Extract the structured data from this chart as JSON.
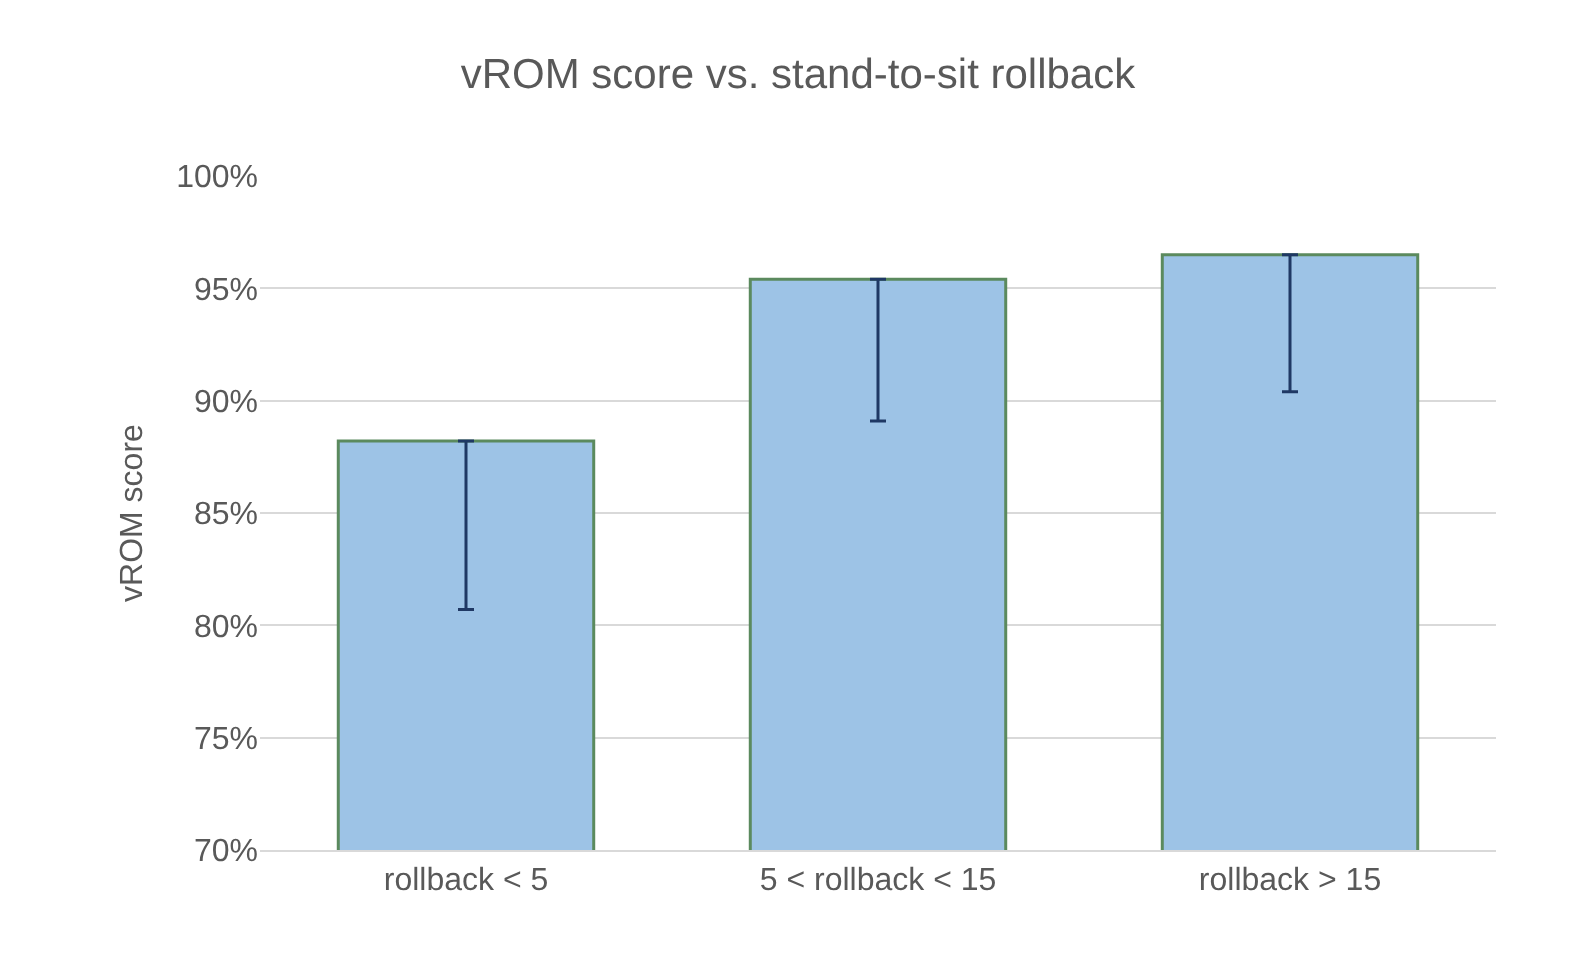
{
  "chart_data": {
    "type": "bar",
    "title": "vROM score vs. stand-to-sit rollback",
    "ylabel": "vROM score",
    "categories": [
      "rollback < 5",
      "5 < rollback < 15",
      "rollback > 15"
    ],
    "values": [
      88.2,
      95.4,
      96.5
    ],
    "errors": [
      [
        80.7,
        88.2
      ],
      [
        89.1,
        95.4
      ],
      [
        90.4,
        96.5
      ]
    ],
    "color": "#9dc3e6",
    "ylim": [
      70,
      100
    ],
    "yticks": [
      {
        "value": 70,
        "label": "70%"
      },
      {
        "value": 75,
        "label": "75%"
      },
      {
        "value": 80,
        "label": "80%"
      },
      {
        "value": 85,
        "label": "85%"
      },
      {
        "value": 90,
        "label": "90%"
      },
      {
        "value": 95,
        "label": "95%"
      },
      {
        "value": 100,
        "label": "100%"
      }
    ],
    "grid": "y"
  }
}
